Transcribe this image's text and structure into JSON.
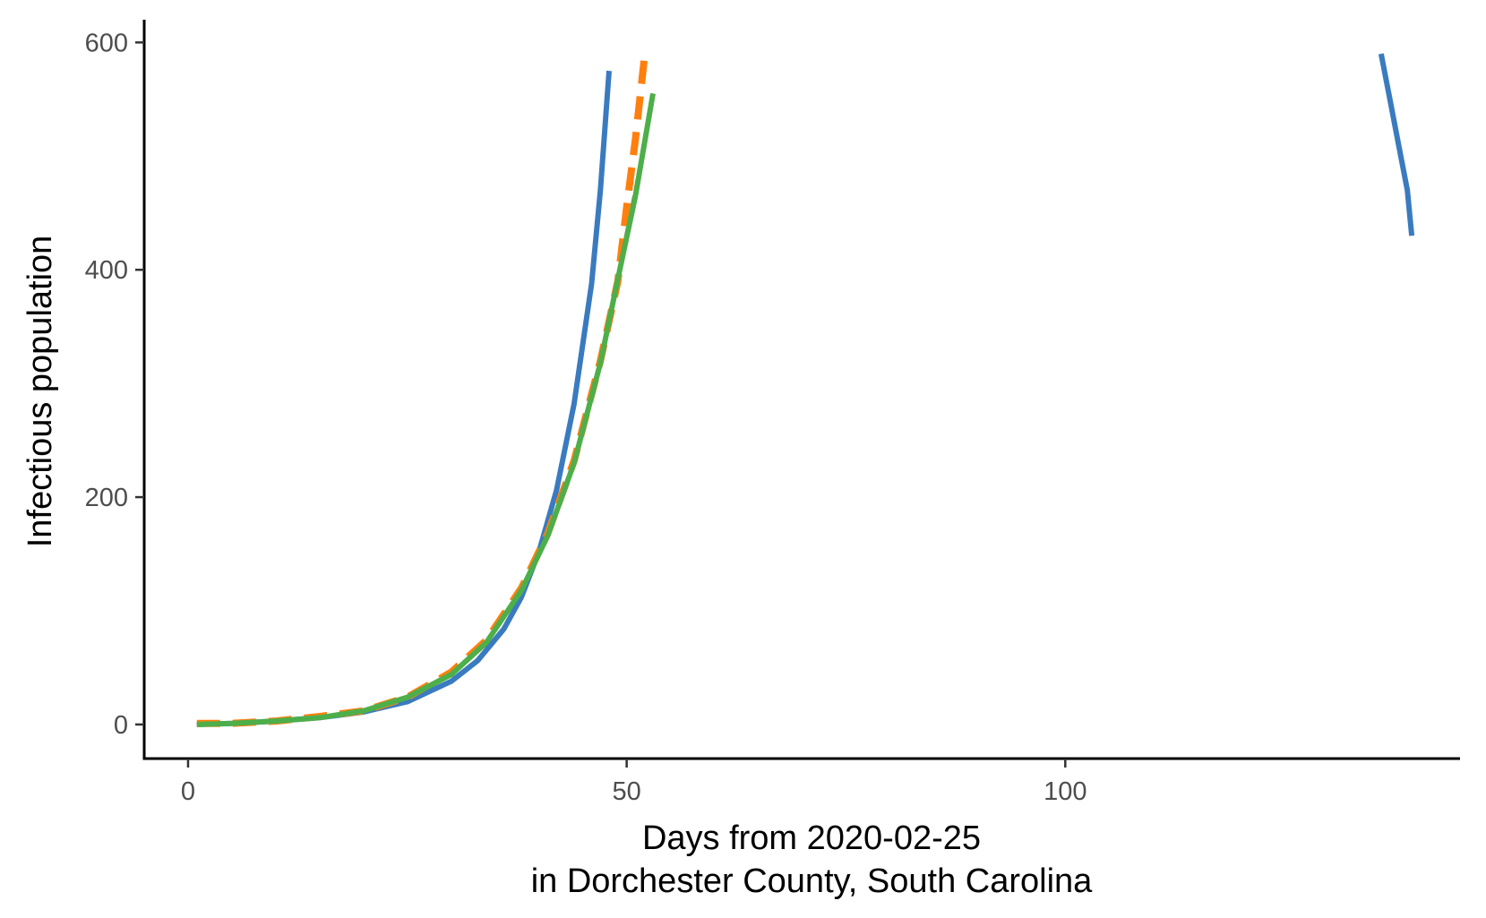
{
  "chart_data": {
    "type": "line",
    "title": "",
    "xlabel_lines": [
      "Days from 2020-02-25",
      "in Dorchester County, South Carolina"
    ],
    "ylabel": "Infectious population",
    "xlim": [
      -5,
      145
    ],
    "ylim": [
      -30,
      620
    ],
    "x_ticks": [
      0,
      50,
      100
    ],
    "y_ticks": [
      0,
      200,
      400,
      600
    ],
    "grid": false,
    "legend": "none",
    "series": [
      {
        "color": "#3a7bbf",
        "dash": "solid",
        "width": 6,
        "segments": [
          [
            [
              1,
              0
            ],
            [
              5,
              1
            ],
            [
              10,
              3
            ],
            [
              15,
              6
            ],
            [
              20,
              11
            ],
            [
              25,
              20
            ],
            [
              30,
              38
            ],
            [
              33,
              56
            ],
            [
              36,
              84
            ],
            [
              38,
              112
            ],
            [
              40,
              152
            ],
            [
              42,
              206
            ],
            [
              44,
              282
            ],
            [
              46,
              388
            ],
            [
              47,
              470
            ],
            [
              48,
              575
            ]
          ],
          [
            [
              136,
              590
            ],
            [
              137,
              550
            ],
            [
              138,
              510
            ],
            [
              139,
              470
            ],
            [
              139.5,
              430
            ]
          ]
        ]
      },
      {
        "color": "#d62728",
        "dash": "12,6",
        "width": 4,
        "segments": [
          [
            [
              1,
              0
            ],
            [
              5,
              1
            ],
            [
              10,
              3
            ],
            [
              15,
              6
            ],
            [
              20,
              12
            ],
            [
              25,
              24
            ],
            [
              30,
              44
            ],
            [
              34,
              72
            ],
            [
              38,
              118
            ],
            [
              41,
              168
            ],
            [
              44,
              232
            ],
            [
              47,
              320
            ],
            [
              49,
              395
            ],
            [
              51,
              470
            ],
            [
              53,
              555
            ]
          ]
        ]
      },
      {
        "color": "#ff7f0e",
        "dash": "26,14",
        "width": 8,
        "segments": [
          [
            [
              1,
              1
            ],
            [
              5,
              1
            ],
            [
              10,
              3
            ],
            [
              15,
              7
            ],
            [
              20,
              12
            ],
            [
              25,
              24
            ],
            [
              30,
              46
            ],
            [
              34,
              74
            ],
            [
              38,
              120
            ],
            [
              41,
              168
            ],
            [
              44,
              232
            ],
            [
              47,
              320
            ],
            [
              49,
              390
            ],
            [
              50,
              455
            ],
            [
              51,
              515
            ],
            [
              52,
              585
            ]
          ]
        ]
      },
      {
        "color": "#4daf4a",
        "dash": "solid",
        "width": 6,
        "segments": [
          [
            [
              1,
              0
            ],
            [
              5,
              1
            ],
            [
              10,
              3
            ],
            [
              15,
              6
            ],
            [
              20,
              12
            ],
            [
              25,
              24
            ],
            [
              30,
              44
            ],
            [
              34,
              72
            ],
            [
              38,
              118
            ],
            [
              41,
              166
            ],
            [
              44,
              230
            ],
            [
              47,
              318
            ],
            [
              49,
              392
            ],
            [
              51,
              465
            ],
            [
              53,
              555
            ]
          ]
        ]
      }
    ]
  }
}
